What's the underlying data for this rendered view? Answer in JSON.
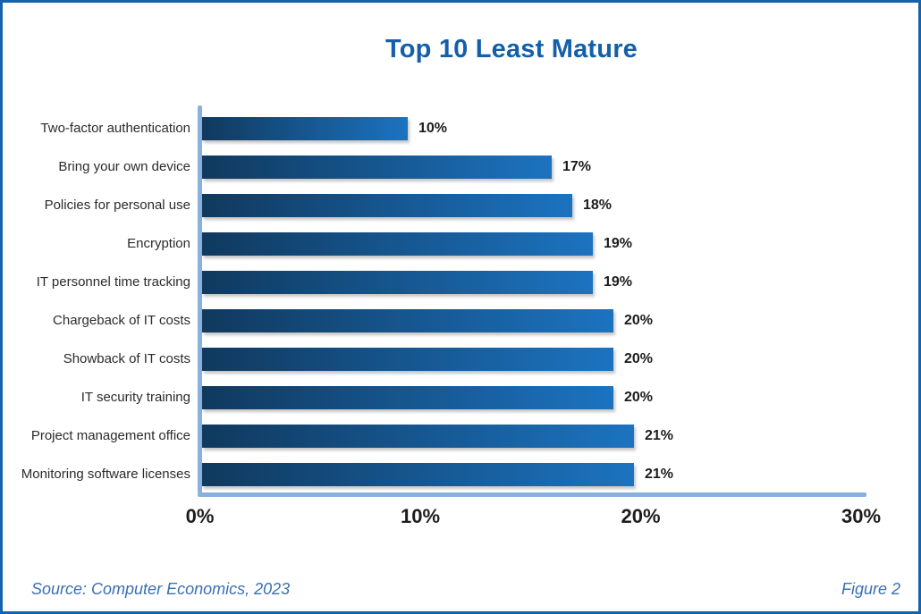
{
  "title": "Top 10 Least Mature",
  "footer": {
    "source": "Source: Computer Economics, 2023",
    "figure": "Figure 2"
  },
  "colors": {
    "frame-border": "#1563AD",
    "title": "#1460A8",
    "bar-start": "#10395E",
    "bar-end": "#1C73C0",
    "axis": "#8AB0DE",
    "category-label": "#2B2B2B",
    "value-label": "#1C1C1C",
    "tick-label": "#1D1D1D",
    "footer-text": "#3A70B2"
  },
  "chart_data": {
    "type": "bar",
    "orientation": "horizontal",
    "title": "Top 10 Least Mature",
    "categories": [
      "Two-factor authentication",
      "Bring your own device",
      "Policies for personal use",
      "Encryption",
      "IT personnel time tracking",
      "Chargeback of IT costs",
      "Showback of IT costs",
      "IT security training",
      "Project management office",
      "Monitoring software licenses"
    ],
    "values": [
      10,
      17,
      18,
      19,
      19,
      20,
      20,
      20,
      21,
      21
    ],
    "value_labels": [
      "10%",
      "17%",
      "18%",
      "19%",
      "19%",
      "20%",
      "20%",
      "20%",
      "21%",
      "21%"
    ],
    "xlabel": "",
    "ylabel": "",
    "xlim": [
      0,
      30
    ],
    "x_ticks": [
      0,
      10,
      20,
      30
    ],
    "x_tick_labels": [
      "0%",
      "10%",
      "20%",
      "30%"
    ],
    "grid": false,
    "legend": "none",
    "source": "Computer Economics, 2023",
    "figure": "Figure 2"
  }
}
